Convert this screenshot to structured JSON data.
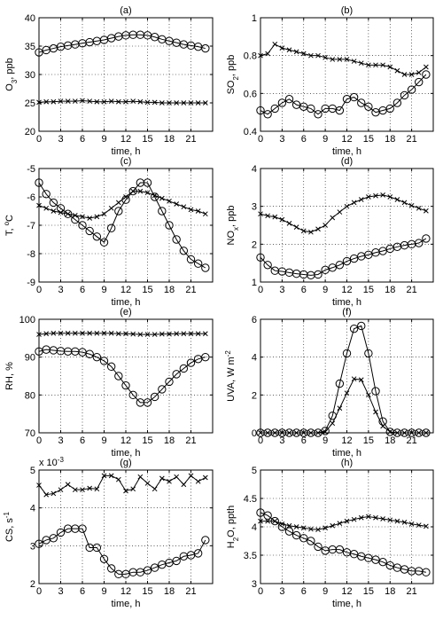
{
  "chart_data": [
    {
      "type": "line",
      "title": "(a)",
      "xlabel": "time, h",
      "ylabel": "O3, ppb",
      "ylabel_main": "O",
      "ylabel_sub": "3",
      "ylabel_rest": ", ppb",
      "xlim": [
        0,
        24
      ],
      "ylim": [
        20,
        40
      ],
      "xticks": [
        0,
        3,
        6,
        9,
        12,
        15,
        18,
        21
      ],
      "yticks": [
        20,
        25,
        30,
        35,
        40
      ],
      "grid": true,
      "x": [
        0,
        1,
        2,
        3,
        4,
        5,
        6,
        7,
        8,
        9,
        10,
        11,
        12,
        13,
        14,
        15,
        16,
        17,
        18,
        19,
        20,
        21,
        22,
        23
      ],
      "series": [
        {
          "marker": "circle",
          "values": [
            33.9,
            34.3,
            34.6,
            34.9,
            35.1,
            35.3,
            35.5,
            35.7,
            35.9,
            36.1,
            36.4,
            36.7,
            36.9,
            37.0,
            37.0,
            36.9,
            36.6,
            36.2,
            35.9,
            35.6,
            35.3,
            35.1,
            34.9,
            34.6
          ]
        },
        {
          "marker": "cross",
          "values": [
            25.1,
            25.2,
            25.2,
            25.3,
            25.3,
            25.3,
            25.4,
            25.3,
            25.2,
            25.2,
            25.3,
            25.2,
            25.2,
            25.3,
            25.2,
            25.1,
            25.1,
            25.0,
            25.0,
            25.0,
            25.0,
            25.0,
            25.0,
            25.0
          ]
        }
      ]
    },
    {
      "type": "line",
      "title": "(b)",
      "xlabel": "time, h",
      "ylabel": "SO2, ppb",
      "ylabel_main": "SO",
      "ylabel_sub": "2",
      "ylabel_rest": ", ppb",
      "xlim": [
        0,
        24
      ],
      "ylim": [
        0.4,
        1
      ],
      "xticks": [
        0,
        3,
        6,
        9,
        12,
        15,
        18,
        21
      ],
      "yticks": [
        0.4,
        0.6,
        0.8,
        1
      ],
      "ytick_labels": [
        "0.4",
        "0.6",
        "0.8",
        "1"
      ],
      "grid": true,
      "x": [
        0,
        1,
        2,
        3,
        4,
        5,
        6,
        7,
        8,
        9,
        10,
        11,
        12,
        13,
        14,
        15,
        16,
        17,
        18,
        19,
        20,
        21,
        22,
        23
      ],
      "series": [
        {
          "marker": "circle",
          "values": [
            0.51,
            0.49,
            0.52,
            0.55,
            0.57,
            0.54,
            0.53,
            0.52,
            0.49,
            0.52,
            0.52,
            0.51,
            0.57,
            0.58,
            0.55,
            0.53,
            0.5,
            0.51,
            0.52,
            0.55,
            0.59,
            0.62,
            0.66,
            0.7
          ]
        },
        {
          "marker": "cross",
          "values": [
            0.8,
            0.81,
            0.86,
            0.84,
            0.83,
            0.82,
            0.81,
            0.8,
            0.8,
            0.79,
            0.78,
            0.78,
            0.78,
            0.77,
            0.76,
            0.75,
            0.75,
            0.75,
            0.74,
            0.72,
            0.7,
            0.7,
            0.71,
            0.74
          ]
        }
      ]
    },
    {
      "type": "line",
      "title": "(c)",
      "xlabel": "time, h",
      "ylabel": "T, oC",
      "ylabel_main": "T, ",
      "ylabel_sup": "o",
      "ylabel_rest": "C",
      "xlim": [
        0,
        24
      ],
      "ylim": [
        -9,
        -5
      ],
      "xticks": [
        0,
        3,
        6,
        9,
        12,
        15,
        18,
        21
      ],
      "yticks": [
        -9,
        -8,
        -7,
        -6,
        -5
      ],
      "grid": true,
      "x": [
        0,
        1,
        2,
        3,
        4,
        5,
        6,
        7,
        8,
        9,
        10,
        11,
        12,
        13,
        14,
        15,
        16,
        17,
        18,
        19,
        20,
        21,
        22,
        23
      ],
      "series": [
        {
          "marker": "circle",
          "values": [
            -5.5,
            -5.9,
            -6.2,
            -6.4,
            -6.6,
            -6.8,
            -7.0,
            -7.2,
            -7.4,
            -7.6,
            -7.1,
            -6.5,
            -6.1,
            -5.8,
            -5.5,
            -5.5,
            -6.0,
            -6.5,
            -7.0,
            -7.5,
            -7.9,
            -8.2,
            -8.35,
            -8.5
          ]
        },
        {
          "marker": "cross",
          "values": [
            -6.3,
            -6.4,
            -6.5,
            -6.55,
            -6.6,
            -6.65,
            -6.7,
            -6.75,
            -6.7,
            -6.6,
            -6.4,
            -6.2,
            -6.0,
            -5.8,
            -5.8,
            -5.85,
            -5.95,
            -6.05,
            -6.15,
            -6.25,
            -6.35,
            -6.45,
            -6.5,
            -6.6
          ]
        }
      ]
    },
    {
      "type": "line",
      "title": "(d)",
      "xlabel": "time, h",
      "ylabel": "NOx, ppb",
      "ylabel_main": "NO",
      "ylabel_sub": "x",
      "ylabel_rest": ", ppb",
      "xlim": [
        0,
        24
      ],
      "ylim": [
        1,
        4
      ],
      "xticks": [
        0,
        3,
        6,
        9,
        12,
        15,
        18,
        21
      ],
      "yticks": [
        1,
        2,
        3,
        4
      ],
      "grid": true,
      "x": [
        0,
        1,
        2,
        3,
        4,
        5,
        6,
        7,
        8,
        9,
        10,
        11,
        12,
        13,
        14,
        15,
        16,
        17,
        18,
        19,
        20,
        21,
        22,
        23
      ],
      "series": [
        {
          "marker": "circle",
          "values": [
            1.65,
            1.45,
            1.3,
            1.28,
            1.25,
            1.22,
            1.2,
            1.18,
            1.2,
            1.32,
            1.38,
            1.45,
            1.55,
            1.62,
            1.68,
            1.72,
            1.78,
            1.82,
            1.88,
            1.93,
            1.97,
            2.0,
            2.03,
            2.15
          ]
        },
        {
          "marker": "cross",
          "values": [
            2.8,
            2.75,
            2.72,
            2.65,
            2.55,
            2.45,
            2.35,
            2.32,
            2.4,
            2.5,
            2.7,
            2.85,
            3.0,
            3.1,
            3.18,
            3.25,
            3.28,
            3.3,
            3.25,
            3.18,
            3.1,
            3.02,
            2.95,
            2.88
          ]
        }
      ]
    },
    {
      "type": "line",
      "title": "(e)",
      "xlabel": "time, h",
      "ylabel": "RH, %",
      "ylabel_main": "RH, %",
      "xlim": [
        0,
        24
      ],
      "ylim": [
        70,
        100
      ],
      "xticks": [
        0,
        3,
        6,
        9,
        12,
        15,
        18,
        21
      ],
      "yticks": [
        70,
        80,
        90,
        100
      ],
      "grid": true,
      "x": [
        0,
        1,
        2,
        3,
        4,
        5,
        6,
        7,
        8,
        9,
        10,
        11,
        12,
        13,
        14,
        15,
        16,
        17,
        18,
        19,
        20,
        21,
        22,
        23
      ],
      "series": [
        {
          "marker": "circle",
          "values": [
            91.5,
            92.0,
            91.8,
            91.6,
            91.5,
            91.5,
            91.3,
            90.8,
            90.0,
            89.0,
            87.5,
            85.0,
            82.5,
            80.0,
            78.0,
            78.0,
            79.5,
            81.5,
            83.5,
            85.5,
            87.0,
            88.5,
            89.5,
            90.0
          ]
        },
        {
          "marker": "cross",
          "values": [
            96.0,
            96.2,
            96.3,
            96.3,
            96.3,
            96.3,
            96.3,
            96.3,
            96.3,
            96.3,
            96.3,
            96.2,
            96.2,
            96.1,
            96.0,
            96.0,
            96.0,
            96.1,
            96.1,
            96.2,
            96.2,
            96.2,
            96.2,
            96.2
          ]
        }
      ]
    },
    {
      "type": "line",
      "title": "(f)",
      "xlabel": "time, h",
      "ylabel": "UVA, W m-2",
      "ylabel_main": "UVA, W m",
      "ylabel_sup": "-2",
      "xlim": [
        0,
        24
      ],
      "ylim": [
        0,
        6
      ],
      "xticks": [
        0,
        3,
        6,
        9,
        12,
        15,
        18,
        21
      ],
      "yticks": [
        0,
        2,
        4,
        6
      ],
      "grid": true,
      "x": [
        0,
        1,
        2,
        3,
        4,
        5,
        6,
        7,
        8,
        9,
        10,
        11,
        12,
        13,
        14,
        15,
        16,
        17,
        18,
        19,
        20,
        21,
        22,
        23
      ],
      "series": [
        {
          "marker": "circle",
          "values": [
            0,
            0,
            0,
            0,
            0,
            0,
            0,
            0,
            0,
            0.1,
            0.9,
            2.6,
            4.2,
            5.5,
            5.65,
            4.2,
            2.2,
            0.6,
            0.05,
            0,
            0,
            0,
            0,
            0
          ]
        },
        {
          "marker": "cross",
          "values": [
            0,
            0,
            0,
            0,
            0,
            0,
            0,
            0,
            0,
            0.05,
            0.5,
            1.3,
            2.1,
            2.85,
            2.8,
            2.0,
            1.1,
            0.35,
            0.05,
            0,
            0,
            0,
            0,
            0
          ]
        }
      ]
    },
    {
      "type": "line",
      "title": "(g)",
      "xlabel": "time, h",
      "ylabel": "CS, s-1",
      "ylabel_main": "CS, s",
      "ylabel_sup": "-1",
      "scale_note_main": "x 10",
      "scale_note_sup": "-3",
      "xlim": [
        0,
        24
      ],
      "ylim": [
        2,
        5
      ],
      "xticks": [
        0,
        3,
        6,
        9,
        12,
        15,
        18,
        21
      ],
      "yticks": [
        2,
        3,
        4,
        5
      ],
      "grid": true,
      "x": [
        0,
        1,
        2,
        3,
        4,
        5,
        6,
        7,
        8,
        9,
        10,
        11,
        12,
        13,
        14,
        15,
        16,
        17,
        18,
        19,
        20,
        21,
        22,
        23
      ],
      "series": [
        {
          "marker": "circle",
          "values": [
            3.05,
            3.15,
            3.2,
            3.35,
            3.45,
            3.45,
            3.45,
            2.95,
            2.95,
            2.65,
            2.4,
            2.25,
            2.25,
            2.3,
            2.3,
            2.35,
            2.42,
            2.5,
            2.55,
            2.6,
            2.72,
            2.75,
            2.8,
            3.15
          ]
        },
        {
          "marker": "cross",
          "values": [
            4.6,
            4.35,
            4.38,
            4.48,
            4.62,
            4.48,
            4.48,
            4.52,
            4.5,
            4.85,
            4.85,
            4.75,
            4.45,
            4.5,
            4.82,
            4.65,
            4.5,
            4.78,
            4.7,
            4.82,
            4.62,
            4.85,
            4.7,
            4.8
          ]
        }
      ]
    },
    {
      "type": "line",
      "title": "(h)",
      "xlabel": "time, h",
      "ylabel": "H2O, ppth",
      "ylabel_main": "H",
      "ylabel_sub": "2",
      "ylabel_rest": "O, ppth",
      "xlim": [
        0,
        24
      ],
      "ylim": [
        3,
        5
      ],
      "xticks": [
        0,
        3,
        6,
        9,
        12,
        15,
        18,
        21
      ],
      "yticks": [
        3,
        3.5,
        4,
        4.5,
        5
      ],
      "ytick_labels": [
        "3",
        "3.5",
        "4",
        "4.5",
        "5"
      ],
      "grid": true,
      "x": [
        0,
        1,
        2,
        3,
        4,
        5,
        6,
        7,
        8,
        9,
        10,
        11,
        12,
        13,
        14,
        15,
        16,
        17,
        18,
        19,
        20,
        21,
        22,
        23
      ],
      "series": [
        {
          "marker": "circle",
          "values": [
            4.25,
            4.2,
            4.1,
            4.0,
            3.92,
            3.85,
            3.8,
            3.75,
            3.65,
            3.58,
            3.6,
            3.6,
            3.55,
            3.52,
            3.48,
            3.45,
            3.42,
            3.38,
            3.32,
            3.28,
            3.25,
            3.22,
            3.22,
            3.2
          ]
        },
        {
          "marker": "cross",
          "values": [
            4.1,
            4.1,
            4.1,
            4.05,
            4.02,
            4.0,
            3.98,
            3.96,
            3.95,
            3.98,
            4.02,
            4.06,
            4.1,
            4.13,
            4.16,
            4.18,
            4.16,
            4.14,
            4.12,
            4.1,
            4.08,
            4.05,
            4.03,
            4.01
          ]
        }
      ]
    }
  ]
}
